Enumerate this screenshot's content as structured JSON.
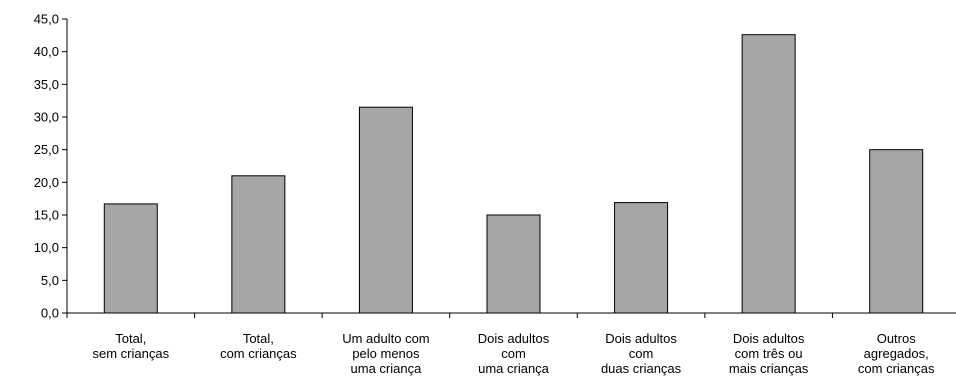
{
  "chart_data": {
    "type": "bar",
    "title": "",
    "xlabel": "",
    "ylabel": "",
    "ylim": [
      0,
      45
    ],
    "yticks": [
      "0,0",
      "5,0",
      "10,0",
      "15,0",
      "20,0",
      "25,0",
      "30,0",
      "35,0",
      "40,0",
      "45,0"
    ],
    "grid": false,
    "bar_color": "#a6a6a6",
    "bar_edge_color": "#000000",
    "categories": [
      [
        "Total,",
        "sem crianças"
      ],
      [
        "Total,",
        "com crianças"
      ],
      [
        "Um adulto com",
        "pelo menos",
        "uma criança"
      ],
      [
        "Dois adultos",
        "com",
        "uma criança"
      ],
      [
        "Dois adultos",
        "com",
        "duas crianças"
      ],
      [
        "Dois adultos",
        "com três ou",
        "mais crianças"
      ],
      [
        "Outros",
        "agregados,",
        "com crianças"
      ]
    ],
    "values": [
      16.7,
      21.0,
      31.5,
      15.0,
      16.9,
      42.6,
      25.0
    ]
  }
}
